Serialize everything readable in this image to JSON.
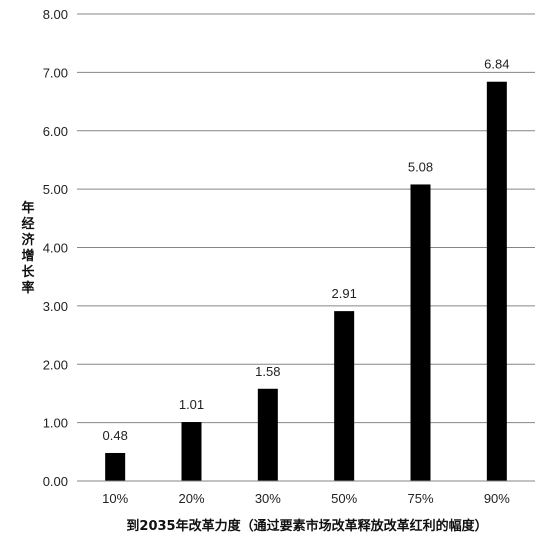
{
  "chart_data": {
    "type": "bar",
    "categories": [
      "10%",
      "20%",
      "30%",
      "50%",
      "75%",
      "90%"
    ],
    "values": [
      0.48,
      1.01,
      1.58,
      2.91,
      5.08,
      6.84
    ],
    "value_labels": [
      "0.48",
      "1.01",
      "1.58",
      "2.91",
      "5.08",
      "6.84"
    ],
    "y_ticks": [
      "0.00",
      "1.00",
      "2.00",
      "3.00",
      "4.00",
      "5.00",
      "6.00",
      "7.00",
      "8.00"
    ],
    "ylim": [
      0,
      8
    ],
    "xlabel": "到2035年改革力度（通过要素市场改革释放改革红利的幅度）",
    "ylabel": "年经济增长率",
    "grid": true,
    "legend": "none",
    "bar_color": "#000000",
    "grid_color": "#868686"
  }
}
